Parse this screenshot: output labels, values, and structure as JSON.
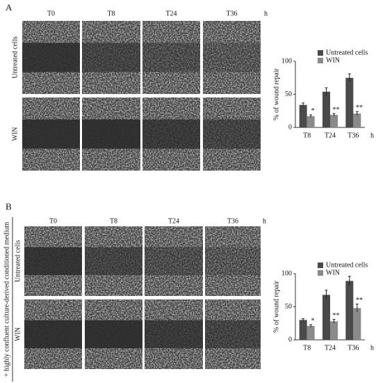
{
  "panels": [
    {
      "label": "A",
      "columns": [
        "T0",
        "T8",
        "T24",
        "T36"
      ],
      "unit": "h",
      "rows": [
        "Untreated cells",
        "WIN"
      ]
    },
    {
      "label": "B",
      "columns": [
        "T0",
        "T8",
        "T24",
        "T36"
      ],
      "unit": "h",
      "rows": [
        "Untreated cells",
        "WIN"
      ],
      "side_label": "+ highly confluent culture-derived conditioned medium"
    }
  ],
  "chart_data": [
    {
      "type": "bar",
      "ylabel": "% of wound repair",
      "xlabel": "h",
      "categories": [
        "T8",
        "T24",
        "T36"
      ],
      "ylim": [
        0,
        100
      ],
      "yticks": [
        0,
        50,
        100
      ],
      "series": [
        {
          "name": "Untreated cells",
          "color": "#4a4a4a",
          "values": [
            34,
            54,
            75
          ],
          "errors": [
            3,
            6,
            6
          ]
        },
        {
          "name": "WIN",
          "color": "#8a8a8a",
          "values": [
            17,
            19,
            21
          ],
          "errors": [
            2,
            2,
            3
          ],
          "significance": [
            "*",
            "**",
            "**"
          ]
        }
      ]
    },
    {
      "type": "bar",
      "ylabel": "% of wound repair",
      "xlabel": "h",
      "categories": [
        "T8",
        "T24",
        "T36"
      ],
      "ylim": [
        0,
        100
      ],
      "yticks": [
        0,
        50,
        100
      ],
      "series": [
        {
          "name": "Untreated cells",
          "color": "#4a4a4a",
          "values": [
            30,
            68,
            89
          ],
          "errors": [
            2,
            7,
            7
          ]
        },
        {
          "name": "WIN",
          "color": "#8a8a8a",
          "values": [
            21,
            28,
            48
          ],
          "errors": [
            2,
            3,
            6
          ],
          "significance": [
            "*",
            "**",
            "**"
          ]
        }
      ]
    }
  ]
}
